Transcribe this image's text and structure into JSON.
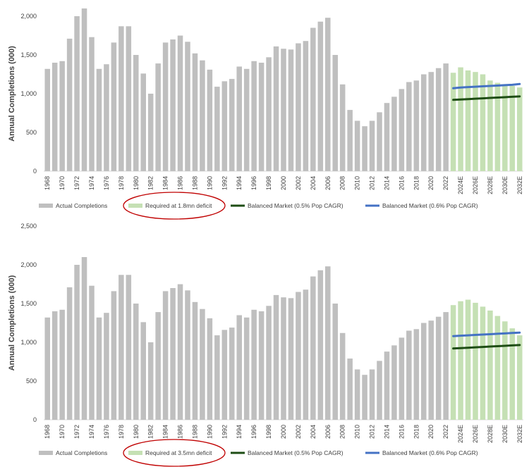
{
  "colors": {
    "actual": "#bfbfbf",
    "required": "#c5e0b4",
    "balanced_05": "#1e4d14",
    "balanced_06": "#4472c4",
    "circle": "#c00000",
    "grid": "#d9d9d9",
    "text": "#404040"
  },
  "chart_data": [
    {
      "type": "bar",
      "ylabel": "Annual Completions (000)",
      "ylim": [
        0,
        2000
      ],
      "yticks": [
        0,
        500,
        1000,
        1500,
        2000
      ],
      "yticks_label": [
        "0",
        "500",
        "1,000",
        "1,500",
        "2,000"
      ],
      "categories": [
        "1968",
        "1969",
        "1970",
        "1971",
        "1972",
        "1973",
        "1974",
        "1975",
        "1976",
        "1977",
        "1978",
        "1979",
        "1980",
        "1981",
        "1982",
        "1983",
        "1984",
        "1985",
        "1986",
        "1987",
        "1988",
        "1989",
        "1990",
        "1991",
        "1992",
        "1993",
        "1994",
        "1995",
        "1996",
        "1997",
        "1998",
        "1999",
        "2000",
        "2001",
        "2002",
        "2003",
        "2004",
        "2005",
        "2006",
        "2007",
        "2008",
        "2009",
        "2010",
        "2011",
        "2012",
        "2013",
        "2014",
        "2015",
        "2016",
        "2017",
        "2018",
        "2019",
        "2020",
        "2021",
        "2022",
        "2023E",
        "2024E",
        "2025E",
        "2026E",
        "2027E",
        "2028E",
        "2029E",
        "2030E",
        "2031E",
        "2032E"
      ],
      "xtick_labels": [
        "1968",
        "1970",
        "1972",
        "1974",
        "1976",
        "1978",
        "1980",
        "1982",
        "1984",
        "1986",
        "1988",
        "1990",
        "1992",
        "1994",
        "1996",
        "1998",
        "2000",
        "2002",
        "2004",
        "2006",
        "2008",
        "2010",
        "2012",
        "2014",
        "2016",
        "2018",
        "2020",
        "2022",
        "2024E",
        "2026E",
        "2028E",
        "2030E",
        "2032E"
      ],
      "series": [
        {
          "name": "Actual Completions",
          "kind": "bar",
          "values": [
            1320,
            1400,
            1420,
            1710,
            2000,
            2100,
            1730,
            1320,
            1380,
            1660,
            1870,
            1870,
            1500,
            1260,
            1000,
            1390,
            1660,
            1700,
            1750,
            1670,
            1520,
            1430,
            1310,
            1090,
            1160,
            1190,
            1350,
            1320,
            1420,
            1400,
            1470,
            1610,
            1580,
            1570,
            1650,
            1680,
            1850,
            1930,
            1980,
            1500,
            1120,
            790,
            650,
            580,
            650,
            760,
            880,
            960,
            1060,
            1150,
            1170,
            1250,
            1280,
            1330,
            1390,
            null,
            null,
            null,
            null,
            null,
            null,
            null,
            null,
            null,
            null
          ]
        },
        {
          "name": "Required at 1.8mn deficit",
          "kind": "bar",
          "values": [
            null,
            null,
            null,
            null,
            null,
            null,
            null,
            null,
            null,
            null,
            null,
            null,
            null,
            null,
            null,
            null,
            null,
            null,
            null,
            null,
            null,
            null,
            null,
            null,
            null,
            null,
            null,
            null,
            null,
            null,
            null,
            null,
            null,
            null,
            null,
            null,
            null,
            null,
            null,
            null,
            null,
            null,
            null,
            null,
            null,
            null,
            null,
            null,
            null,
            null,
            null,
            null,
            null,
            null,
            null,
            1270,
            1340,
            1300,
            1280,
            1250,
            1170,
            1140,
            1120,
            1100,
            1080
          ]
        },
        {
          "name": "Balanced Market (0.5% Pop CAGR)",
          "kind": "line",
          "values": [
            null,
            null,
            null,
            null,
            null,
            null,
            null,
            null,
            null,
            null,
            null,
            null,
            null,
            null,
            null,
            null,
            null,
            null,
            null,
            null,
            null,
            null,
            null,
            null,
            null,
            null,
            null,
            null,
            null,
            null,
            null,
            null,
            null,
            null,
            null,
            null,
            null,
            null,
            null,
            null,
            null,
            null,
            null,
            null,
            null,
            null,
            null,
            null,
            null,
            null,
            null,
            null,
            null,
            null,
            null,
            920,
            925,
            930,
            935,
            940,
            945,
            950,
            955,
            960,
            965
          ]
        },
        {
          "name": "Balanced Market (0.6% Pop CAGR)",
          "kind": "line",
          "values": [
            null,
            null,
            null,
            null,
            null,
            null,
            null,
            null,
            null,
            null,
            null,
            null,
            null,
            null,
            null,
            null,
            null,
            null,
            null,
            null,
            null,
            null,
            null,
            null,
            null,
            null,
            null,
            null,
            null,
            null,
            null,
            null,
            null,
            null,
            null,
            null,
            null,
            null,
            null,
            null,
            null,
            null,
            null,
            null,
            null,
            null,
            null,
            null,
            null,
            null,
            null,
            null,
            null,
            null,
            null,
            1070,
            1080,
            1085,
            1090,
            1095,
            1100,
            1105,
            1110,
            1115,
            1125
          ]
        }
      ],
      "circled_legend": "Required at 1.8mn deficit",
      "grid": false,
      "legend_position": "bottom"
    },
    {
      "type": "bar",
      "ylabel": "Annual Completions (000)",
      "ylim": [
        0,
        2500
      ],
      "yticks": [
        0,
        500,
        1000,
        1500,
        2000,
        2500
      ],
      "yticks_label": [
        "0",
        "500",
        "1,000",
        "1,500",
        "2,000",
        "2,500"
      ],
      "categories": [
        "1968",
        "1969",
        "1970",
        "1971",
        "1972",
        "1973",
        "1974",
        "1975",
        "1976",
        "1977",
        "1978",
        "1979",
        "1980",
        "1981",
        "1982",
        "1983",
        "1984",
        "1985",
        "1986",
        "1987",
        "1988",
        "1989",
        "1990",
        "1991",
        "1992",
        "1993",
        "1994",
        "1995",
        "1996",
        "1997",
        "1998",
        "1999",
        "2000",
        "2001",
        "2002",
        "2003",
        "2004",
        "2005",
        "2006",
        "2007",
        "2008",
        "2009",
        "2010",
        "2011",
        "2012",
        "2013",
        "2014",
        "2015",
        "2016",
        "2017",
        "2018",
        "2019",
        "2020",
        "2021",
        "2022",
        "2023E",
        "2024E",
        "2025E",
        "2026E",
        "2027E",
        "2028E",
        "2029E",
        "2030E",
        "2031E",
        "2032E"
      ],
      "xtick_labels": [
        "1968",
        "1970",
        "1972",
        "1974",
        "1976",
        "1978",
        "1980",
        "1982",
        "1984",
        "1986",
        "1988",
        "1990",
        "1992",
        "1994",
        "1996",
        "1998",
        "2000",
        "2002",
        "2004",
        "2006",
        "2008",
        "2010",
        "2012",
        "2014",
        "2016",
        "2018",
        "2020",
        "2022",
        "2024E",
        "2026E",
        "2028E",
        "2030E",
        "2032E"
      ],
      "series": [
        {
          "name": "Actual Completions",
          "kind": "bar",
          "values": [
            1320,
            1400,
            1420,
            1710,
            2000,
            2100,
            1730,
            1320,
            1380,
            1660,
            1870,
            1870,
            1500,
            1260,
            1000,
            1390,
            1660,
            1700,
            1750,
            1670,
            1520,
            1430,
            1310,
            1090,
            1160,
            1190,
            1350,
            1320,
            1420,
            1400,
            1470,
            1610,
            1580,
            1570,
            1650,
            1680,
            1850,
            1930,
            1980,
            1500,
            1120,
            790,
            650,
            580,
            650,
            760,
            880,
            960,
            1060,
            1150,
            1170,
            1250,
            1280,
            1330,
            1390,
            null,
            null,
            null,
            null,
            null,
            null,
            null,
            null,
            null,
            null
          ]
        },
        {
          "name": "Required at 3.5mn deficit",
          "kind": "bar",
          "values": [
            null,
            null,
            null,
            null,
            null,
            null,
            null,
            null,
            null,
            null,
            null,
            null,
            null,
            null,
            null,
            null,
            null,
            null,
            null,
            null,
            null,
            null,
            null,
            null,
            null,
            null,
            null,
            null,
            null,
            null,
            null,
            null,
            null,
            null,
            null,
            null,
            null,
            null,
            null,
            null,
            null,
            null,
            null,
            null,
            null,
            null,
            null,
            null,
            null,
            null,
            null,
            null,
            null,
            null,
            null,
            1480,
            1530,
            1550,
            1510,
            1460,
            1410,
            1340,
            1270,
            1180,
            1090
          ]
        },
        {
          "name": "Balanced Market (0.5% Pop CAGR)",
          "kind": "line",
          "values": [
            null,
            null,
            null,
            null,
            null,
            null,
            null,
            null,
            null,
            null,
            null,
            null,
            null,
            null,
            null,
            null,
            null,
            null,
            null,
            null,
            null,
            null,
            null,
            null,
            null,
            null,
            null,
            null,
            null,
            null,
            null,
            null,
            null,
            null,
            null,
            null,
            null,
            null,
            null,
            null,
            null,
            null,
            null,
            null,
            null,
            null,
            null,
            null,
            null,
            null,
            null,
            null,
            null,
            null,
            null,
            920,
            925,
            930,
            935,
            940,
            945,
            950,
            955,
            960,
            965
          ]
        },
        {
          "name": "Balanced Market (0.6% Pop CAGR)",
          "kind": "line",
          "values": [
            null,
            null,
            null,
            null,
            null,
            null,
            null,
            null,
            null,
            null,
            null,
            null,
            null,
            null,
            null,
            null,
            null,
            null,
            null,
            null,
            null,
            null,
            null,
            null,
            null,
            null,
            null,
            null,
            null,
            null,
            null,
            null,
            null,
            null,
            null,
            null,
            null,
            null,
            null,
            null,
            null,
            null,
            null,
            null,
            null,
            null,
            null,
            null,
            null,
            null,
            null,
            null,
            null,
            null,
            null,
            1080,
            1085,
            1090,
            1095,
            1100,
            1105,
            1110,
            1115,
            1120,
            1125
          ]
        }
      ],
      "circled_legend": "Required at 3.5mn deficit",
      "grid": false,
      "legend_position": "bottom"
    }
  ]
}
